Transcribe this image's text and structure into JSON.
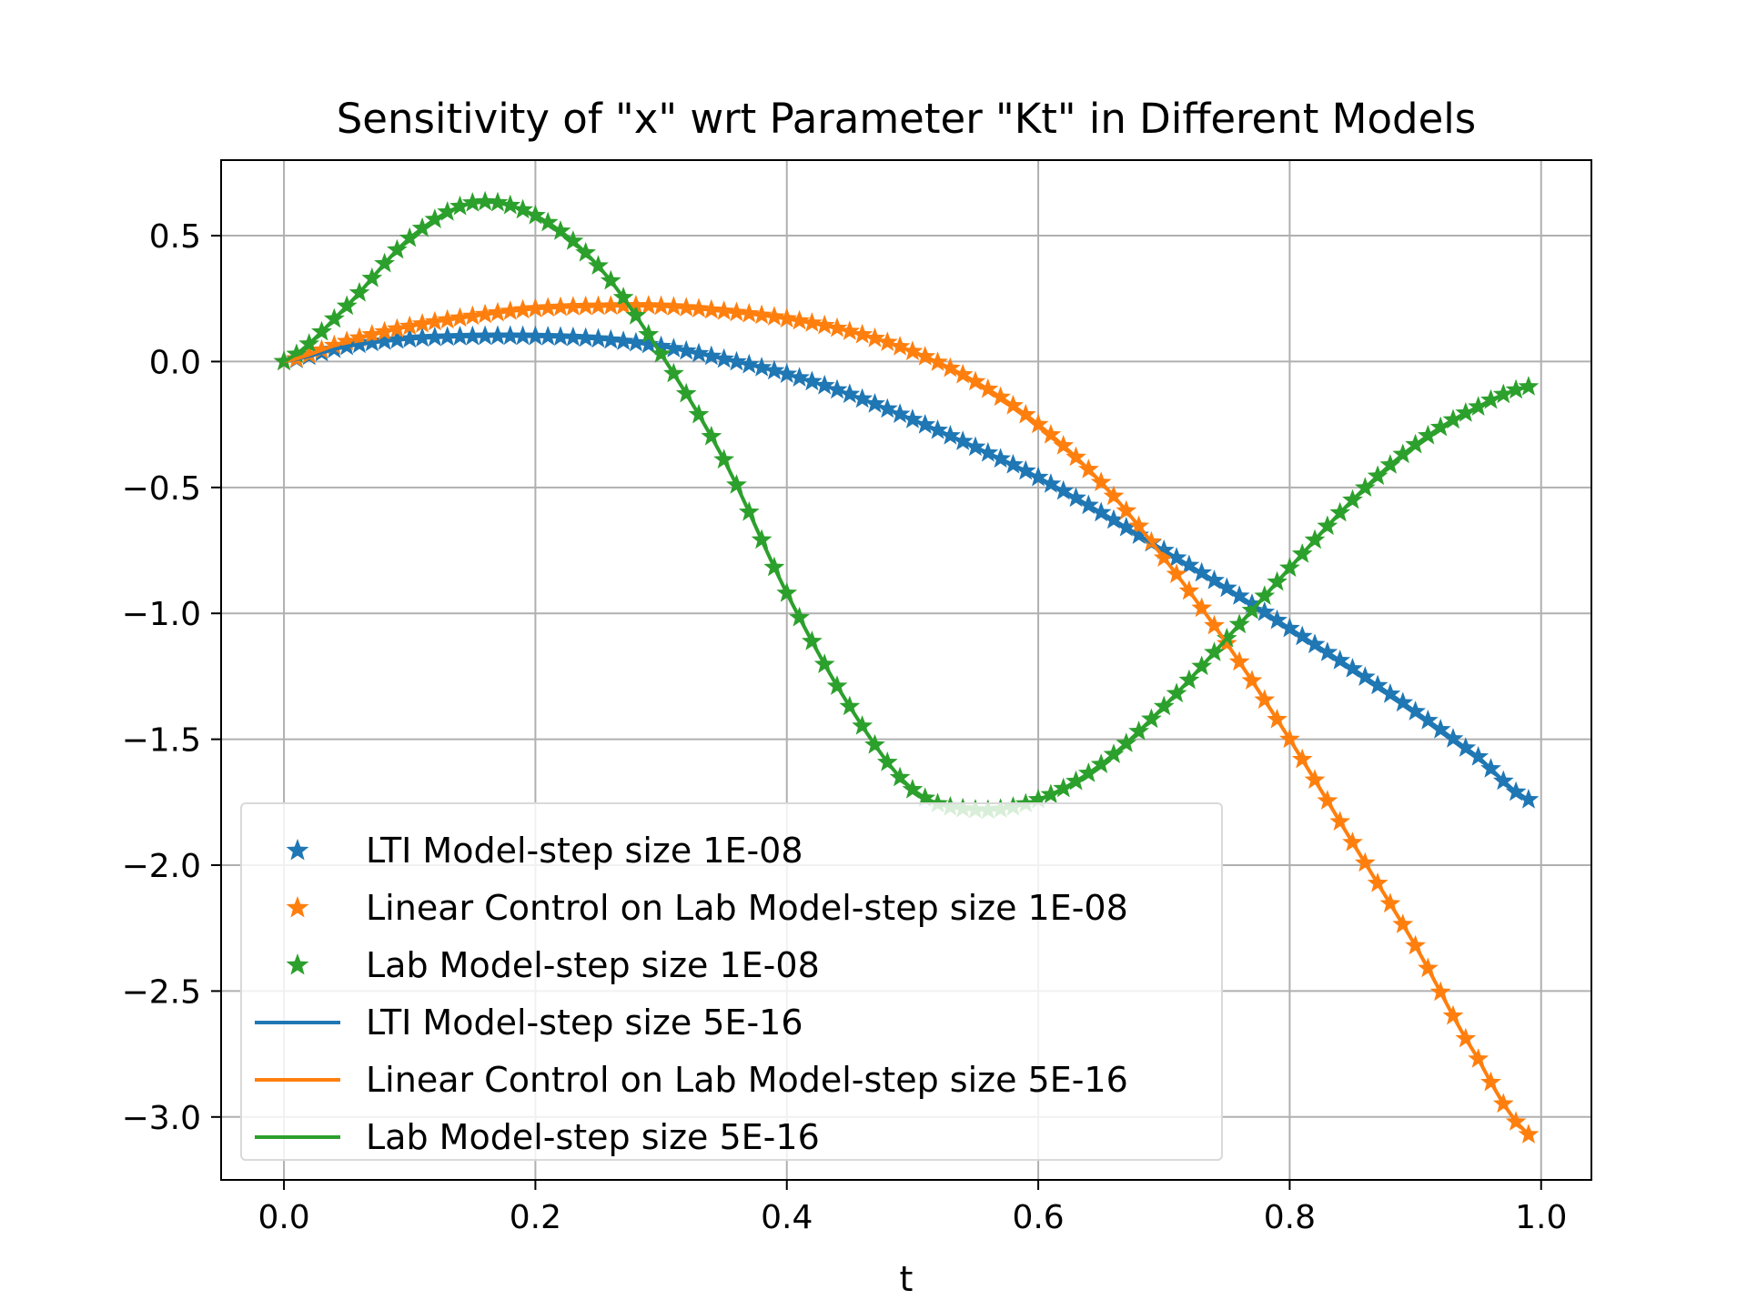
{
  "chart_data": {
    "type": "line",
    "title": "Sensitivity of \"x\" wrt Parameter \"Kt\" in Different Models",
    "xlabel": "t",
    "ylabel": "",
    "xlim": [
      -0.05,
      1.04
    ],
    "ylim": [
      -3.25,
      0.8
    ],
    "xticks": [
      0.0,
      0.2,
      0.4,
      0.6,
      0.8,
      1.0
    ],
    "xtick_labels": [
      "0.0",
      "0.2",
      "0.4",
      "0.6",
      "0.8",
      "1.0"
    ],
    "yticks": [
      0.5,
      0.0,
      -0.5,
      -1.0,
      -1.5,
      -2.0,
      -2.5,
      -3.0
    ],
    "ytick_labels": [
      "0.5",
      "0.0",
      "−0.5",
      "−1.0",
      "−1.5",
      "−2.0",
      "−2.5",
      "−3.0"
    ],
    "grid": true,
    "legend_position": "lower-left",
    "x": [
      0.0,
      0.05,
      0.1,
      0.15,
      0.2,
      0.25,
      0.3,
      0.35,
      0.4,
      0.45,
      0.5,
      0.55,
      0.6,
      0.65,
      0.7,
      0.75,
      0.8,
      0.85,
      0.9,
      0.95,
      0.99
    ],
    "series": [
      {
        "name": "LTI Model-step size 1E-08",
        "style": "star-marker",
        "color": "#1f77b4",
        "values": [
          0.0,
          0.06,
          0.09,
          0.1,
          0.1,
          0.09,
          0.06,
          0.01,
          -0.05,
          -0.13,
          -0.23,
          -0.34,
          -0.46,
          -0.6,
          -0.75,
          -0.9,
          -1.06,
          -1.22,
          -1.39,
          -1.57,
          -1.74
        ]
      },
      {
        "name": "Linear Control on Lab Model-step size 1E-08",
        "style": "star-marker",
        "color": "#ff7f0e",
        "values": [
          0.0,
          0.08,
          0.14,
          0.18,
          0.21,
          0.22,
          0.22,
          0.2,
          0.17,
          0.12,
          0.04,
          -0.08,
          -0.25,
          -0.48,
          -0.78,
          -1.12,
          -1.5,
          -1.91,
          -2.32,
          -2.77,
          -3.07
        ]
      },
      {
        "name": "Lab Model-step size 1E-08",
        "style": "star-marker",
        "color": "#2ca02c",
        "values": [
          0.0,
          0.22,
          0.49,
          0.63,
          0.58,
          0.38,
          0.03,
          -0.39,
          -0.92,
          -1.37,
          -1.7,
          -1.78,
          -1.74,
          -1.6,
          -1.37,
          -1.1,
          -0.82,
          -0.55,
          -0.33,
          -0.18,
          -0.1
        ]
      },
      {
        "name": "LTI Model-step size 5E-16",
        "style": "line",
        "color": "#1f77b4",
        "values": [
          0.0,
          0.06,
          0.09,
          0.1,
          0.1,
          0.09,
          0.06,
          0.01,
          -0.05,
          -0.13,
          -0.23,
          -0.34,
          -0.46,
          -0.6,
          -0.75,
          -0.9,
          -1.06,
          -1.22,
          -1.39,
          -1.57,
          -1.74
        ]
      },
      {
        "name": "Linear Control on Lab Model-step size 5E-16",
        "style": "line",
        "color": "#ff7f0e",
        "values": [
          0.0,
          0.08,
          0.14,
          0.18,
          0.21,
          0.22,
          0.22,
          0.2,
          0.17,
          0.12,
          0.04,
          -0.08,
          -0.25,
          -0.48,
          -0.78,
          -1.12,
          -1.5,
          -1.91,
          -2.32,
          -2.77,
          -3.07
        ]
      },
      {
        "name": "Lab Model-step size 5E-16",
        "style": "line",
        "color": "#2ca02c",
        "values": [
          0.0,
          0.22,
          0.49,
          0.63,
          0.58,
          0.38,
          0.03,
          -0.39,
          -0.92,
          -1.37,
          -1.7,
          -1.78,
          -1.74,
          -1.6,
          -1.37,
          -1.1,
          -0.82,
          -0.55,
          -0.33,
          -0.18,
          -0.1
        ]
      }
    ]
  }
}
